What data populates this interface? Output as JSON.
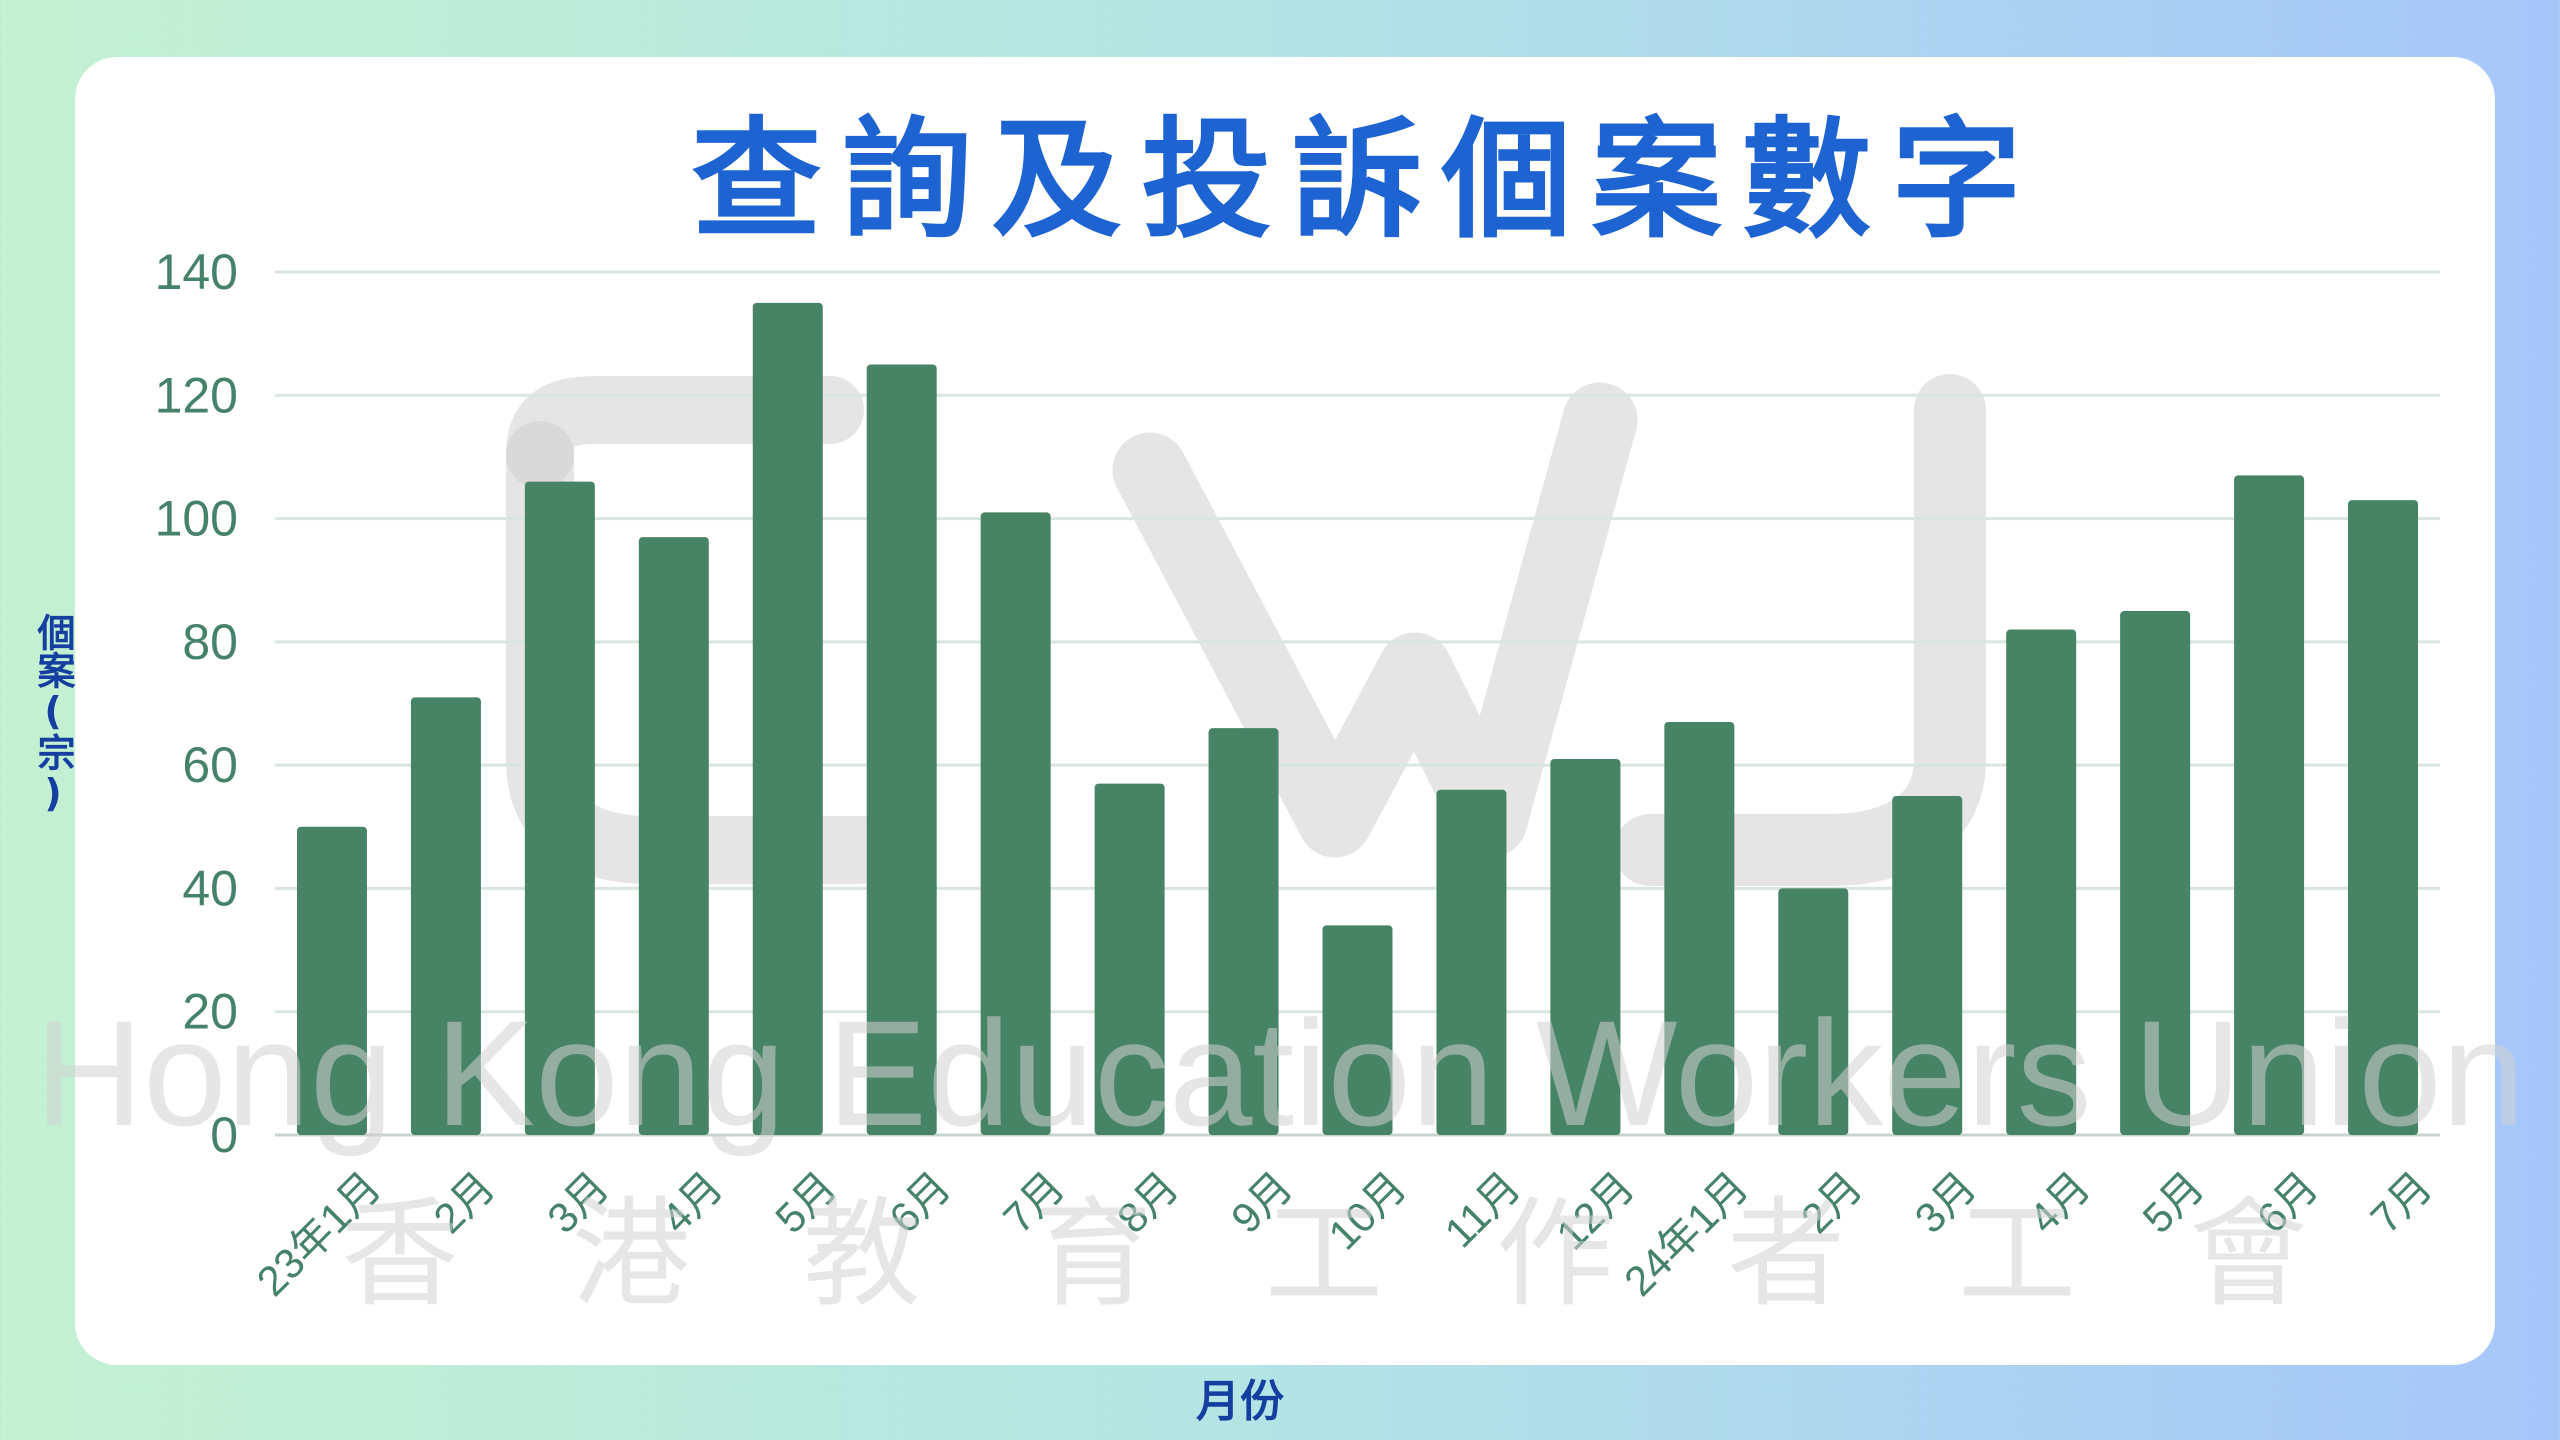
{
  "chart_data": {
    "type": "bar",
    "title": "查詢及投訴個案數字",
    "xlabel": "月份",
    "ylabel": "個案(宗)",
    "ylim": [
      0,
      140
    ],
    "yticks": [
      0,
      20,
      40,
      60,
      80,
      100,
      120,
      140
    ],
    "grid": true,
    "categories": [
      "23年1月",
      "2月",
      "3月",
      "4月",
      "5月",
      "6月",
      "7月",
      "8月",
      "9月",
      "10月",
      "11月",
      "12月",
      "24年1月",
      "2月",
      "3月",
      "4月",
      "5月",
      "6月",
      "7月"
    ],
    "values": [
      50,
      71,
      106,
      97,
      135,
      125,
      101,
      57,
      66,
      34,
      56,
      61,
      67,
      40,
      55,
      82,
      85,
      107,
      103
    ],
    "bar_color": "#418060",
    "grid_color": "#d9e6df",
    "tick_color": "#46826a"
  },
  "watermark": {
    "logo": "HKEWU",
    "english": "Hong Kong Education Workers Union",
    "chinese": [
      "香",
      "港",
      "教",
      "育",
      "工",
      "作",
      "者",
      "工",
      "會"
    ]
  }
}
